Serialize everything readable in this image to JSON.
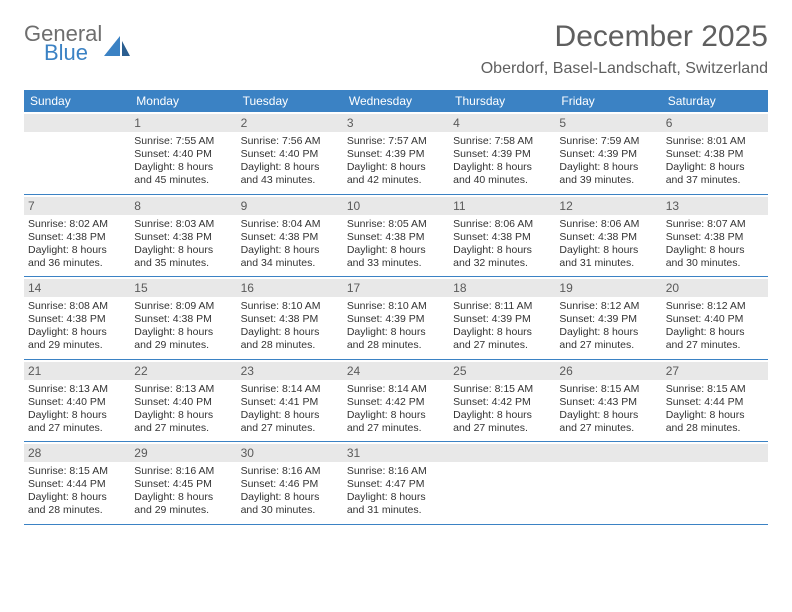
{
  "logo": {
    "general": "General",
    "blue": "Blue"
  },
  "title": "December 2025",
  "location": "Oberdorf, Basel-Landschaft, Switzerland",
  "colors": {
    "header_bg": "#3b82c4",
    "header_text": "#ffffff",
    "daynum_bg": "#e8e8e8",
    "daynum_text": "#5a5a5a",
    "body_text": "#333333",
    "title_text": "#5f5f5f",
    "logo_gray": "#6e6e6e",
    "logo_blue": "#3b82c4",
    "week_border": "#3b82c4"
  },
  "weekdays": [
    "Sunday",
    "Monday",
    "Tuesday",
    "Wednesday",
    "Thursday",
    "Friday",
    "Saturday"
  ],
  "weeks": [
    [
      {
        "n": "",
        "sr": "",
        "ss": "",
        "dl": ""
      },
      {
        "n": "1",
        "sr": "Sunrise: 7:55 AM",
        "ss": "Sunset: 4:40 PM",
        "dl": "Daylight: 8 hours and 45 minutes."
      },
      {
        "n": "2",
        "sr": "Sunrise: 7:56 AM",
        "ss": "Sunset: 4:40 PM",
        "dl": "Daylight: 8 hours and 43 minutes."
      },
      {
        "n": "3",
        "sr": "Sunrise: 7:57 AM",
        "ss": "Sunset: 4:39 PM",
        "dl": "Daylight: 8 hours and 42 minutes."
      },
      {
        "n": "4",
        "sr": "Sunrise: 7:58 AM",
        "ss": "Sunset: 4:39 PM",
        "dl": "Daylight: 8 hours and 40 minutes."
      },
      {
        "n": "5",
        "sr": "Sunrise: 7:59 AM",
        "ss": "Sunset: 4:39 PM",
        "dl": "Daylight: 8 hours and 39 minutes."
      },
      {
        "n": "6",
        "sr": "Sunrise: 8:01 AM",
        "ss": "Sunset: 4:38 PM",
        "dl": "Daylight: 8 hours and 37 minutes."
      }
    ],
    [
      {
        "n": "7",
        "sr": "Sunrise: 8:02 AM",
        "ss": "Sunset: 4:38 PM",
        "dl": "Daylight: 8 hours and 36 minutes."
      },
      {
        "n": "8",
        "sr": "Sunrise: 8:03 AM",
        "ss": "Sunset: 4:38 PM",
        "dl": "Daylight: 8 hours and 35 minutes."
      },
      {
        "n": "9",
        "sr": "Sunrise: 8:04 AM",
        "ss": "Sunset: 4:38 PM",
        "dl": "Daylight: 8 hours and 34 minutes."
      },
      {
        "n": "10",
        "sr": "Sunrise: 8:05 AM",
        "ss": "Sunset: 4:38 PM",
        "dl": "Daylight: 8 hours and 33 minutes."
      },
      {
        "n": "11",
        "sr": "Sunrise: 8:06 AM",
        "ss": "Sunset: 4:38 PM",
        "dl": "Daylight: 8 hours and 32 minutes."
      },
      {
        "n": "12",
        "sr": "Sunrise: 8:06 AM",
        "ss": "Sunset: 4:38 PM",
        "dl": "Daylight: 8 hours and 31 minutes."
      },
      {
        "n": "13",
        "sr": "Sunrise: 8:07 AM",
        "ss": "Sunset: 4:38 PM",
        "dl": "Daylight: 8 hours and 30 minutes."
      }
    ],
    [
      {
        "n": "14",
        "sr": "Sunrise: 8:08 AM",
        "ss": "Sunset: 4:38 PM",
        "dl": "Daylight: 8 hours and 29 minutes."
      },
      {
        "n": "15",
        "sr": "Sunrise: 8:09 AM",
        "ss": "Sunset: 4:38 PM",
        "dl": "Daylight: 8 hours and 29 minutes."
      },
      {
        "n": "16",
        "sr": "Sunrise: 8:10 AM",
        "ss": "Sunset: 4:38 PM",
        "dl": "Daylight: 8 hours and 28 minutes."
      },
      {
        "n": "17",
        "sr": "Sunrise: 8:10 AM",
        "ss": "Sunset: 4:39 PM",
        "dl": "Daylight: 8 hours and 28 minutes."
      },
      {
        "n": "18",
        "sr": "Sunrise: 8:11 AM",
        "ss": "Sunset: 4:39 PM",
        "dl": "Daylight: 8 hours and 27 minutes."
      },
      {
        "n": "19",
        "sr": "Sunrise: 8:12 AM",
        "ss": "Sunset: 4:39 PM",
        "dl": "Daylight: 8 hours and 27 minutes."
      },
      {
        "n": "20",
        "sr": "Sunrise: 8:12 AM",
        "ss": "Sunset: 4:40 PM",
        "dl": "Daylight: 8 hours and 27 minutes."
      }
    ],
    [
      {
        "n": "21",
        "sr": "Sunrise: 8:13 AM",
        "ss": "Sunset: 4:40 PM",
        "dl": "Daylight: 8 hours and 27 minutes."
      },
      {
        "n": "22",
        "sr": "Sunrise: 8:13 AM",
        "ss": "Sunset: 4:40 PM",
        "dl": "Daylight: 8 hours and 27 minutes."
      },
      {
        "n": "23",
        "sr": "Sunrise: 8:14 AM",
        "ss": "Sunset: 4:41 PM",
        "dl": "Daylight: 8 hours and 27 minutes."
      },
      {
        "n": "24",
        "sr": "Sunrise: 8:14 AM",
        "ss": "Sunset: 4:42 PM",
        "dl": "Daylight: 8 hours and 27 minutes."
      },
      {
        "n": "25",
        "sr": "Sunrise: 8:15 AM",
        "ss": "Sunset: 4:42 PM",
        "dl": "Daylight: 8 hours and 27 minutes."
      },
      {
        "n": "26",
        "sr": "Sunrise: 8:15 AM",
        "ss": "Sunset: 4:43 PM",
        "dl": "Daylight: 8 hours and 27 minutes."
      },
      {
        "n": "27",
        "sr": "Sunrise: 8:15 AM",
        "ss": "Sunset: 4:44 PM",
        "dl": "Daylight: 8 hours and 28 minutes."
      }
    ],
    [
      {
        "n": "28",
        "sr": "Sunrise: 8:15 AM",
        "ss": "Sunset: 4:44 PM",
        "dl": "Daylight: 8 hours and 28 minutes."
      },
      {
        "n": "29",
        "sr": "Sunrise: 8:16 AM",
        "ss": "Sunset: 4:45 PM",
        "dl": "Daylight: 8 hours and 29 minutes."
      },
      {
        "n": "30",
        "sr": "Sunrise: 8:16 AM",
        "ss": "Sunset: 4:46 PM",
        "dl": "Daylight: 8 hours and 30 minutes."
      },
      {
        "n": "31",
        "sr": "Sunrise: 8:16 AM",
        "ss": "Sunset: 4:47 PM",
        "dl": "Daylight: 8 hours and 31 minutes."
      },
      {
        "n": "",
        "sr": "",
        "ss": "",
        "dl": ""
      },
      {
        "n": "",
        "sr": "",
        "ss": "",
        "dl": ""
      },
      {
        "n": "",
        "sr": "",
        "ss": "",
        "dl": ""
      }
    ]
  ]
}
